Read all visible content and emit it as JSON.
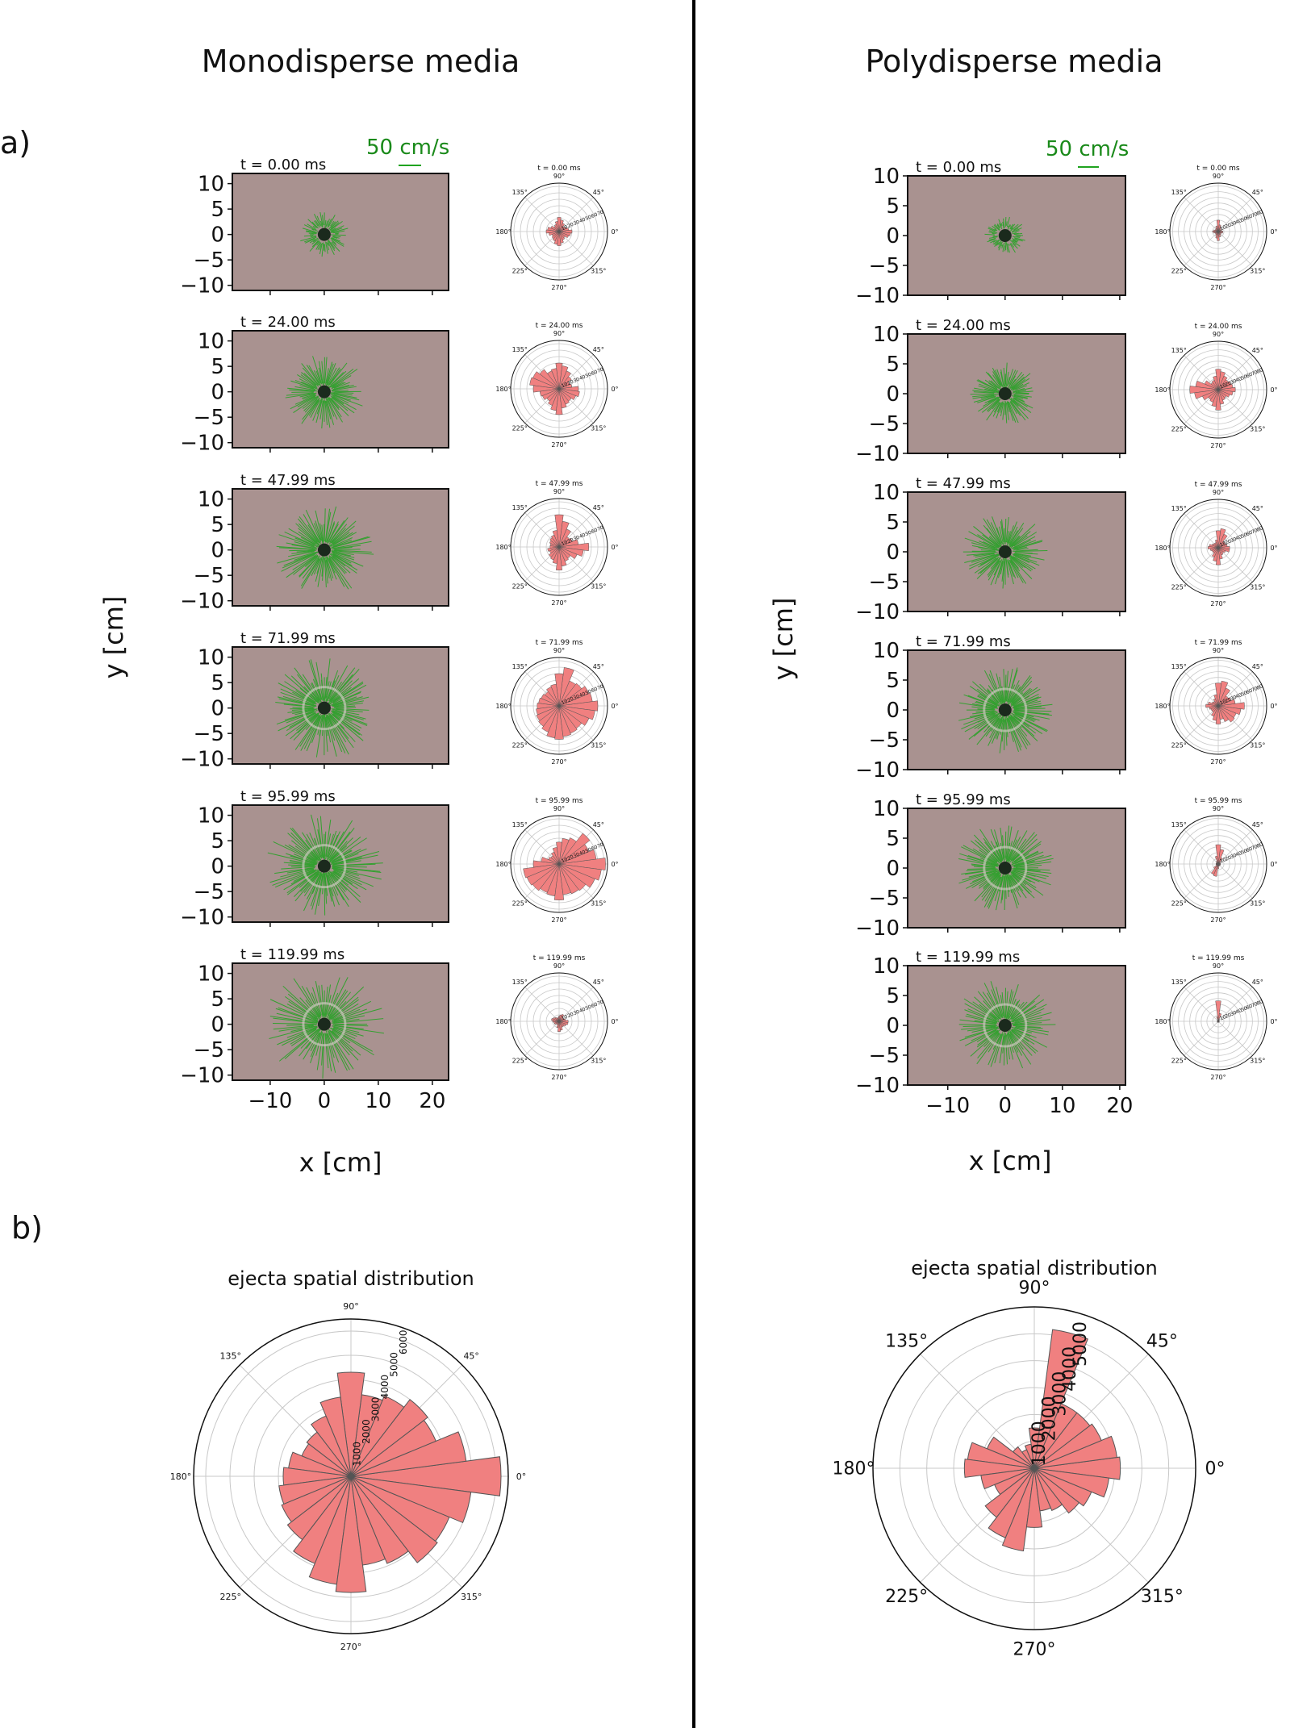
{
  "panels": [
    {
      "id": "mono",
      "title": "Monodisperse media",
      "scale_label": "50 cm/s",
      "times": [
        "t = 0.00 ms",
        "t = 24.00 ms",
        "t = 47.99 ms",
        "t = 71.99 ms",
        "t = 95.99 ms",
        "t = 119.99 ms"
      ],
      "ylabel": "y [cm]",
      "xlabel": "x [cm]",
      "yticks": [
        "10",
        "5",
        "0",
        "−10"
      ],
      "yticks_full": [
        "10",
        "5",
        "0",
        "−5",
        "−10"
      ],
      "xticks": [
        "−10",
        "0",
        "10",
        "20"
      ],
      "rose_radial_ticks": [
        "10",
        "20",
        "30",
        "40",
        "50",
        "60",
        "70"
      ]
    },
    {
      "id": "poly",
      "title": "Polydisperse media",
      "scale_label": "50 cm/s",
      "times": [
        "t = 0.00 ms",
        "t = 24.00 ms",
        "t = 47.99 ms",
        "t = 71.99 ms",
        "t = 95.99 ms",
        "t = 119.99 ms"
      ],
      "ylabel": "y [cm]",
      "xlabel": "x [cm]",
      "yticks_full": [
        "10",
        "5",
        "0",
        "−5",
        "−10"
      ],
      "xticks": [
        "−10",
        "0",
        "10",
        "20"
      ],
      "rose_radial_ticks": [
        "10",
        "20",
        "30",
        "40",
        "50",
        "60",
        "70",
        "80"
      ]
    }
  ],
  "labels": {
    "a": "a)",
    "b": "b)"
  },
  "angle_labels": [
    "0°",
    "45°",
    "90°",
    "135°",
    "180°",
    "225°",
    "270°",
    "315°"
  ],
  "colors": {
    "rose_fill": "#f08080",
    "vector": "#1fa31f",
    "photo_bg": "#a99290",
    "scale_text": "#1a8a1a",
    "divider": "#000000"
  },
  "chart_data": [
    {
      "type": "polar-bar",
      "title": "ejecta spatial distribution",
      "panel": "Monodisperse media",
      "bin_width_deg": 15,
      "bin_centers_deg": [
        0,
        15,
        30,
        45,
        60,
        75,
        90,
        105,
        120,
        135,
        150,
        165,
        180,
        195,
        210,
        225,
        240,
        255,
        270,
        285,
        300,
        315,
        330,
        345
      ],
      "values": [
        6200,
        4800,
        3800,
        4000,
        3600,
        3400,
        4300,
        3300,
        2700,
        2300,
        2200,
        2600,
        2800,
        3000,
        3100,
        3300,
        3900,
        4500,
        4800,
        3700,
        3900,
        4500,
        4400,
        5000
      ],
      "rlim": [
        0,
        6500
      ],
      "radial_ticks": [
        "1000",
        "2000",
        "3000",
        "4000",
        "5000",
        "6000"
      ],
      "radial_tick_values": [
        1000,
        2000,
        3000,
        4000,
        5000,
        6000
      ],
      "angle_labels": [
        "0°",
        "45°",
        "90°",
        "135°",
        "180°",
        "225°",
        "270°",
        "315°"
      ]
    },
    {
      "type": "polar-bar",
      "title": "ejecta spatial distribution",
      "panel": "Polydisperse media",
      "bin_width_deg": 15,
      "bin_centers_deg": [
        0,
        15,
        30,
        45,
        60,
        75,
        90,
        105,
        120,
        135,
        150,
        165,
        180,
        195,
        210,
        225,
        240,
        255,
        270,
        285,
        300,
        315,
        330,
        345
      ],
      "values": [
        3200,
        3100,
        2700,
        2600,
        2600,
        5200,
        1500,
        900,
        750,
        1000,
        1900,
        2500,
        2600,
        2000,
        1600,
        2300,
        2800,
        3100,
        2200,
        1600,
        1700,
        2100,
        2300,
        2800
      ],
      "rlim": [
        0,
        6000
      ],
      "radial_ticks": [
        "1000",
        "2000",
        "3000",
        "4000",
        "5000"
      ],
      "radial_tick_values": [
        1000,
        2000,
        3000,
        4000,
        5000
      ],
      "angle_labels": [
        "0°",
        "45°",
        "90°",
        "135°",
        "180°",
        "225°",
        "270°",
        "315°"
      ]
    },
    {
      "type": "polar-bar",
      "panel": "Monodisperse media",
      "small_roses": true,
      "bin_width_deg": 15,
      "bin_centers_deg": [
        0,
        15,
        30,
        45,
        60,
        75,
        90,
        105,
        120,
        135,
        150,
        165,
        180,
        195,
        210,
        225,
        240,
        255,
        270,
        285,
        300,
        315,
        330,
        345
      ],
      "rlim": [
        0,
        75
      ],
      "series": [
        {
          "name": "t = 0.00 ms",
          "values": [
            20,
            15,
            12,
            10,
            14,
            18,
            22,
            16,
            12,
            10,
            14,
            18,
            20,
            16,
            12,
            14,
            16,
            20,
            22,
            18,
            14,
            12,
            16,
            18
          ]
        },
        {
          "name": "t = 24.00 ms",
          "values": [
            30,
            20,
            18,
            24,
            30,
            36,
            40,
            32,
            30,
            38,
            44,
            46,
            40,
            30,
            28,
            24,
            28,
            34,
            40,
            30,
            26,
            24,
            28,
            32
          ]
        },
        {
          "name": "t = 47.99 ms",
          "values": [
            46,
            30,
            22,
            20,
            30,
            40,
            50,
            26,
            20,
            18,
            16,
            14,
            14,
            18,
            16,
            20,
            22,
            26,
            36,
            30,
            24,
            22,
            30,
            38
          ]
        },
        {
          "name": "t = 71.99 ms",
          "values": [
            60,
            52,
            50,
            44,
            42,
            60,
            50,
            34,
            32,
            28,
            30,
            32,
            34,
            36,
            38,
            40,
            44,
            50,
            52,
            48,
            46,
            44,
            50,
            56
          ]
        },
        {
          "name": "t = 95.99 ms",
          "values": [
            72,
            58,
            50,
            60,
            44,
            40,
            34,
            26,
            20,
            16,
            18,
            28,
            40,
            56,
            54,
            52,
            48,
            50,
            56,
            48,
            50,
            52,
            60,
            66
          ]
        },
        {
          "name": "t = 119.99 ms",
          "values": [
            14,
            10,
            8,
            8,
            12,
            10,
            8,
            6,
            6,
            8,
            10,
            12,
            10,
            8,
            8,
            6,
            6,
            10,
            16,
            14,
            10,
            10,
            12,
            14
          ]
        }
      ]
    },
    {
      "type": "polar-bar",
      "panel": "Polydisperse media",
      "small_roses": true,
      "bin_width_deg": 15,
      "bin_centers_deg": [
        0,
        15,
        30,
        45,
        60,
        75,
        90,
        105,
        120,
        135,
        150,
        165,
        180,
        195,
        210,
        225,
        240,
        255,
        270,
        285,
        300,
        315,
        330,
        345
      ],
      "rlim": [
        0,
        85
      ],
      "series": [
        {
          "name": "t = 0.00 ms",
          "values": [
            8,
            6,
            5,
            6,
            8,
            12,
            20,
            10,
            8,
            6,
            6,
            8,
            10,
            8,
            6,
            6,
            8,
            12,
            16,
            10,
            8,
            6,
            6,
            8
          ]
        },
        {
          "name": "t = 24.00 ms",
          "values": [
            30,
            26,
            24,
            22,
            26,
            32,
            36,
            24,
            18,
            16,
            26,
            40,
            50,
            42,
            30,
            22,
            24,
            30,
            36,
            26,
            20,
            18,
            22,
            26
          ]
        },
        {
          "name": "t = 47.99 ms",
          "values": [
            20,
            16,
            14,
            14,
            26,
            34,
            30,
            14,
            10,
            10,
            12,
            16,
            18,
            14,
            12,
            12,
            18,
            24,
            30,
            20,
            14,
            12,
            14,
            20
          ]
        },
        {
          "name": "t = 71.99 ms",
          "values": [
            46,
            30,
            24,
            22,
            34,
            44,
            40,
            20,
            14,
            10,
            12,
            18,
            22,
            16,
            14,
            14,
            20,
            26,
            32,
            24,
            30,
            36,
            34,
            40
          ]
        },
        {
          "name": "t = 95.99 ms",
          "values": [
            4,
            4,
            4,
            6,
            12,
            26,
            34,
            14,
            6,
            4,
            4,
            4,
            4,
            4,
            4,
            10,
            20,
            22,
            8,
            4,
            4,
            4,
            4,
            4
          ]
        },
        {
          "name": "t = 119.99 ms",
          "values": [
            2,
            2,
            2,
            2,
            4,
            14,
            36,
            8,
            2,
            2,
            2,
            2,
            2,
            2,
            2,
            2,
            2,
            2,
            2,
            2,
            2,
            2,
            2,
            2
          ]
        }
      ]
    }
  ]
}
